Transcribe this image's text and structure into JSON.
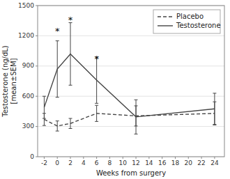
{
  "chart_data": {
    "type": "line",
    "x_label": "Weeks from surgery",
    "y_label": "Testosterone (ng/dL)\n[mean±SEM]",
    "x": [
      -2,
      0,
      2,
      6,
      12,
      24
    ],
    "series": [
      {
        "name": "Placebo",
        "color": "#444444",
        "line_style": "dashed",
        "values": [
          370,
          305,
          330,
          430,
          405,
          430
        ],
        "errors": [
          60,
          50,
          50,
          80,
          100,
          115
        ]
      },
      {
        "name": "Testosterone",
        "color": "#444444",
        "line_style": "solid",
        "values": [
          490,
          870,
          1020,
          760,
          395,
          475
        ],
        "errors": [
          110,
          280,
          310,
          230,
          170,
          155
        ]
      }
    ],
    "annotations": [
      {
        "text": "*",
        "x": 0,
        "y": 1260
      },
      {
        "text": "*",
        "x": 2,
        "y": 1370
      },
      {
        "text": "*",
        "x": 6,
        "y": 980
      }
    ],
    "xlim": [
      -3,
      25.5
    ],
    "xticks": [
      -2,
      0,
      2,
      4,
      6,
      8,
      10,
      12,
      14,
      16,
      18,
      20,
      22,
      24
    ],
    "ylim": [
      0,
      1500
    ],
    "yticks": [
      0,
      300,
      600,
      900,
      1200,
      1500
    ],
    "grid": true,
    "legend": "upper right"
  }
}
